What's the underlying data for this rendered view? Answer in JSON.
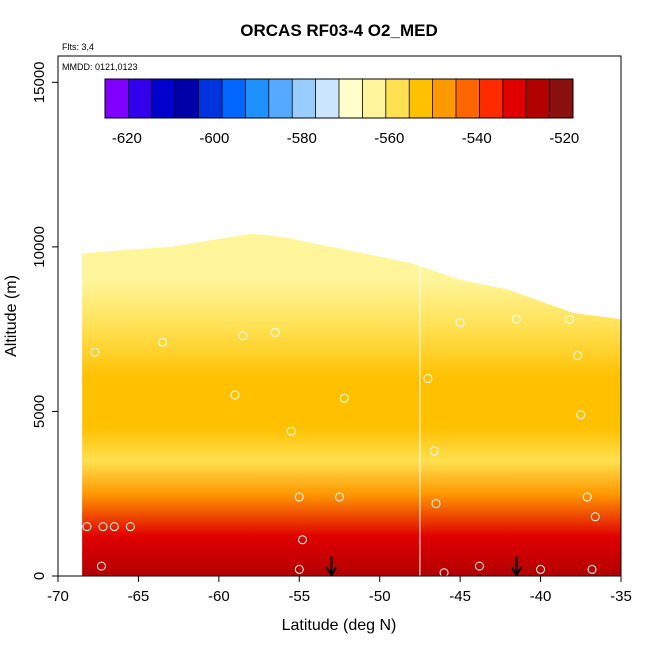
{
  "chart_data": {
    "type": "heatmap",
    "title": "ORCAS RF03-4 O2_MED",
    "xlabel": "Latitude (deg N)",
    "ylabel": "Altitude (m)",
    "xlim": [
      -70,
      -35
    ],
    "ylim": [
      0,
      15800
    ],
    "x_ticks": [
      -70,
      -65,
      -60,
      -55,
      -50,
      -45,
      -40,
      -35
    ],
    "y_ticks": [
      0,
      5000,
      10000,
      15000
    ],
    "notes": [
      "Flts: 3,4",
      "MMDD: 0121,0123"
    ],
    "colorbar": {
      "min": -625,
      "max": -518,
      "ticks": [
        -620,
        -600,
        -580,
        -560,
        -540,
        -520
      ],
      "colors": [
        "#7f00ff",
        "#3300ee",
        "#0000cc",
        "#0000aa",
        "#0033dd",
        "#0066ff",
        "#1e90ff",
        "#55aaff",
        "#99ccff",
        "#cce6ff",
        "#ffffcc",
        "#fff59a",
        "#ffe050",
        "#ffc000",
        "#ff9900",
        "#ff6600",
        "#ff2a00",
        "#e00000",
        "#b30000",
        "#8b1010"
      ]
    },
    "field_layers": [
      {
        "alt": 0,
        "value": -527
      },
      {
        "alt": 1200,
        "value": -532
      },
      {
        "alt": 2500,
        "value": -545
      },
      {
        "alt": 3500,
        "value": -556
      },
      {
        "alt": 4500,
        "value": -551
      },
      {
        "alt": 6000,
        "value": -553
      },
      {
        "alt": 7500,
        "value": -557
      },
      {
        "alt": 9000,
        "value": -563
      },
      {
        "alt": 10600,
        "value": -566
      }
    ],
    "coverage_top": [
      [
        -68.5,
        9800
      ],
      [
        -66,
        9900
      ],
      [
        -63,
        10000
      ],
      [
        -58,
        10400
      ],
      [
        -56,
        10300
      ],
      [
        -52,
        9900
      ],
      [
        -48,
        9500
      ],
      [
        -45,
        9000
      ],
      [
        -42,
        8700
      ],
      [
        -38,
        8000
      ],
      [
        -35,
        7800
      ]
    ],
    "sample_points": [
      [
        -68.2,
        1500
      ],
      [
        -67.2,
        1500
      ],
      [
        -66.5,
        1500
      ],
      [
        -65.5,
        1500
      ],
      [
        -67.3,
        300
      ],
      [
        -67.7,
        6800
      ],
      [
        -63.5,
        7100
      ],
      [
        -58.5,
        7300
      ],
      [
        -56.5,
        7400
      ],
      [
        -59,
        5500
      ],
      [
        -55.5,
        4400
      ],
      [
        -52.2,
        5400
      ],
      [
        -55,
        2400
      ],
      [
        -54.8,
        1100
      ],
      [
        -52.5,
        2400
      ],
      [
        -55,
        200
      ],
      [
        -47,
        6000
      ],
      [
        -45,
        7700
      ],
      [
        -41.5,
        7800
      ],
      [
        -38.2,
        7800
      ],
      [
        -37.7,
        6700
      ],
      [
        -37.5,
        4900
      ],
      [
        -46.6,
        3800
      ],
      [
        -46.5,
        2200
      ],
      [
        -37.1,
        2400
      ],
      [
        -36.6,
        1800
      ],
      [
        -43.8,
        300
      ],
      [
        -40,
        200
      ],
      [
        -36.8,
        200
      ],
      [
        -46,
        100
      ]
    ],
    "flight_markers": [
      -53,
      -41.5
    ],
    "vertical_line_lat": -47.5
  }
}
